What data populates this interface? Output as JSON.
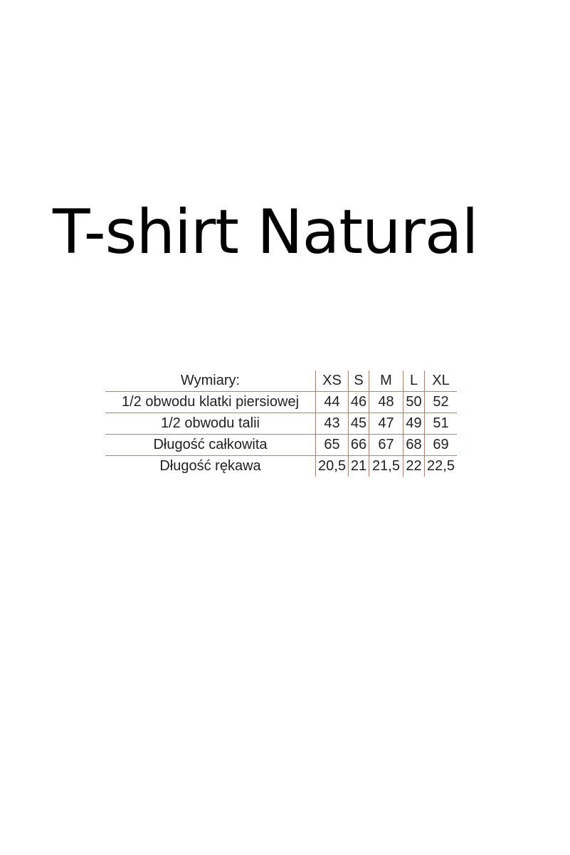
{
  "title": "T-shirt Natural",
  "table": {
    "header": [
      "Wymiary:",
      "XS",
      "S",
      "M",
      "L",
      "XL"
    ],
    "rows": [
      [
        "1/2 obwodu klatki piersiowej",
        "44",
        "46",
        "48",
        "50",
        "52"
      ],
      [
        "1/2 obwodu talii",
        "43",
        "45",
        "47",
        "49",
        "51"
      ],
      [
        "Długość całkowita",
        "65",
        "66",
        "67",
        "68",
        "69"
      ],
      [
        "Długość rękawa",
        "20,5",
        "21",
        "21,5",
        "22",
        "22,5"
      ]
    ],
    "line_color": "#e0705a"
  }
}
